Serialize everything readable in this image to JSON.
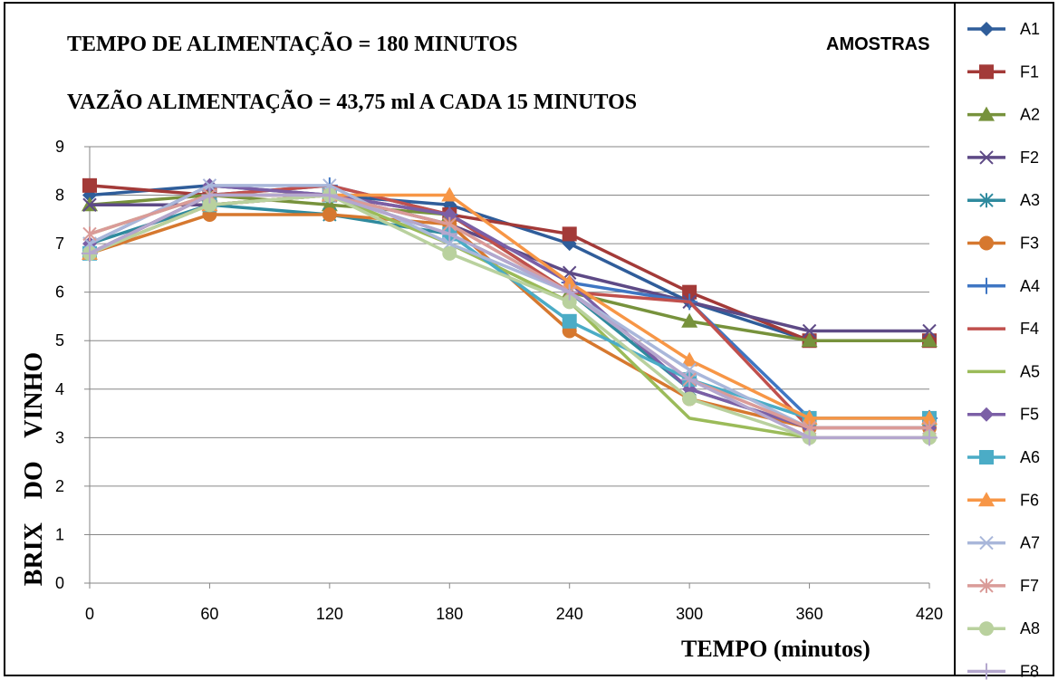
{
  "chart_data": {
    "type": "line",
    "title": "TEMPO DE ALIMENTAÇÃO = 180 MINUTOS",
    "subtitle": "VAZÃO ALIMENTAÇÃO = 43,75 ml A CADA 15 MINUTOS",
    "xlabel": "TEMPO (minutos)",
    "ylabel": "BRIX  DO  VINHO",
    "legend_title": "AMOSTRAS",
    "legend_placement": "right",
    "grid": true,
    "x": [
      0,
      60,
      120,
      180,
      240,
      300,
      360,
      420
    ],
    "xticks": [
      "0",
      "60",
      "120",
      "180",
      "240",
      "300",
      "360",
      "420"
    ],
    "yticks": [
      "0",
      "1",
      "2",
      "3",
      "4",
      "5",
      "6",
      "7",
      "8",
      "9"
    ],
    "xlim": [
      0,
      420
    ],
    "ylim": [
      0,
      9
    ],
    "series": [
      {
        "name": "A1",
        "color": "#2F5D9A",
        "marker": "diamond",
        "values": [
          8.0,
          8.2,
          8.0,
          7.8,
          7.0,
          5.8,
          5.0,
          5.0
        ]
      },
      {
        "name": "F1",
        "color": "#A33A38",
        "marker": "square",
        "values": [
          8.2,
          8.0,
          8.0,
          7.6,
          7.2,
          6.0,
          5.0,
          5.0
        ]
      },
      {
        "name": "A2",
        "color": "#77923C",
        "marker": "triangle",
        "values": [
          7.8,
          8.0,
          7.8,
          7.6,
          6.0,
          5.4,
          5.0,
          5.0
        ]
      },
      {
        "name": "F2",
        "color": "#5E4A86",
        "marker": "x",
        "values": [
          7.8,
          7.8,
          8.0,
          7.4,
          6.4,
          5.8,
          5.2,
          5.2
        ]
      },
      {
        "name": "A3",
        "color": "#2F8A9E",
        "marker": "asterisk",
        "values": [
          7.0,
          7.8,
          7.6,
          7.2,
          6.0,
          4.0,
          3.2,
          3.2
        ]
      },
      {
        "name": "F3",
        "color": "#D6782F",
        "marker": "circle",
        "values": [
          6.8,
          7.6,
          7.6,
          7.4,
          5.2,
          3.8,
          3.2,
          3.2
        ]
      },
      {
        "name": "A4",
        "color": "#3F76C3",
        "marker": "plus",
        "values": [
          6.8,
          8.0,
          8.2,
          7.6,
          6.2,
          5.8,
          3.4,
          3.4
        ]
      },
      {
        "name": "F4",
        "color": "#C0504D",
        "marker": "none",
        "values": [
          6.8,
          8.0,
          8.2,
          7.6,
          6.0,
          5.8,
          3.2,
          3.2
        ]
      },
      {
        "name": "A5",
        "color": "#9BBB59",
        "marker": "none",
        "values": [
          7.2,
          8.0,
          8.0,
          7.0,
          5.8,
          3.4,
          3.0,
          3.0
        ]
      },
      {
        "name": "F5",
        "color": "#7B5FA6",
        "marker": "diamond",
        "values": [
          7.0,
          8.2,
          8.0,
          7.6,
          6.2,
          4.0,
          3.2,
          3.2
        ]
      },
      {
        "name": "A6",
        "color": "#4BACC6",
        "marker": "square",
        "values": [
          6.8,
          7.8,
          8.0,
          7.2,
          5.4,
          4.2,
          3.4,
          3.4
        ]
      },
      {
        "name": "F6",
        "color": "#F79646",
        "marker": "triangle",
        "values": [
          6.8,
          7.8,
          8.0,
          8.0,
          6.2,
          4.6,
          3.4,
          3.4
        ]
      },
      {
        "name": "A7",
        "color": "#A9B7DA",
        "marker": "x",
        "values": [
          7.0,
          8.2,
          8.2,
          7.0,
          6.0,
          4.4,
          3.2,
          3.2
        ]
      },
      {
        "name": "F7",
        "color": "#DA9B98",
        "marker": "asterisk",
        "values": [
          7.2,
          8.0,
          8.0,
          7.4,
          6.0,
          4.2,
          3.2,
          3.2
        ]
      },
      {
        "name": "A8",
        "color": "#B9D19E",
        "marker": "circle",
        "values": [
          6.8,
          7.8,
          8.0,
          6.8,
          5.8,
          3.8,
          3.0,
          3.0
        ]
      },
      {
        "name": "F8",
        "color": "#B4A7CE",
        "marker": "plus",
        "values": [
          6.8,
          8.0,
          8.0,
          7.2,
          6.0,
          4.2,
          3.0,
          3.0
        ]
      }
    ]
  }
}
